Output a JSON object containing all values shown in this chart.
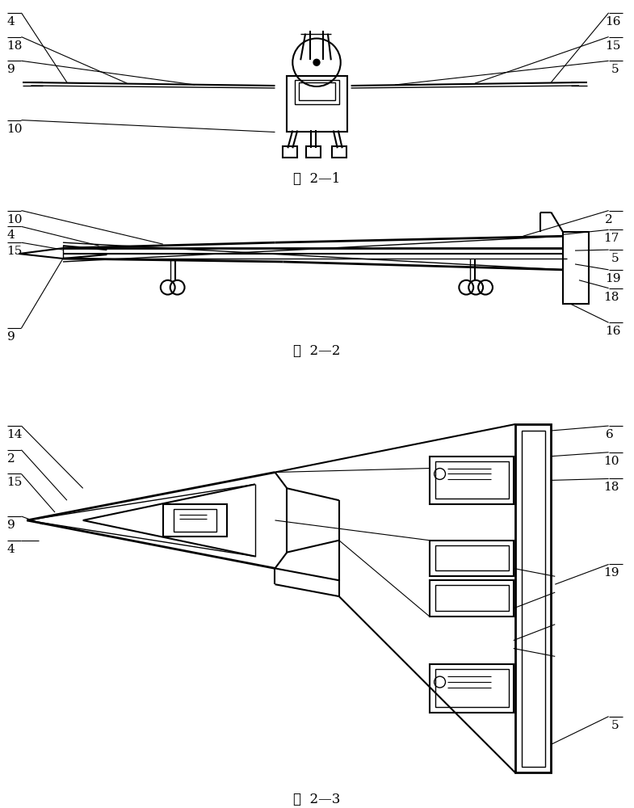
{
  "bg_color": "#ffffff",
  "fig1_caption": "图  2—1",
  "fig2_caption": "图  2—2",
  "fig3_caption": "图  2—3"
}
